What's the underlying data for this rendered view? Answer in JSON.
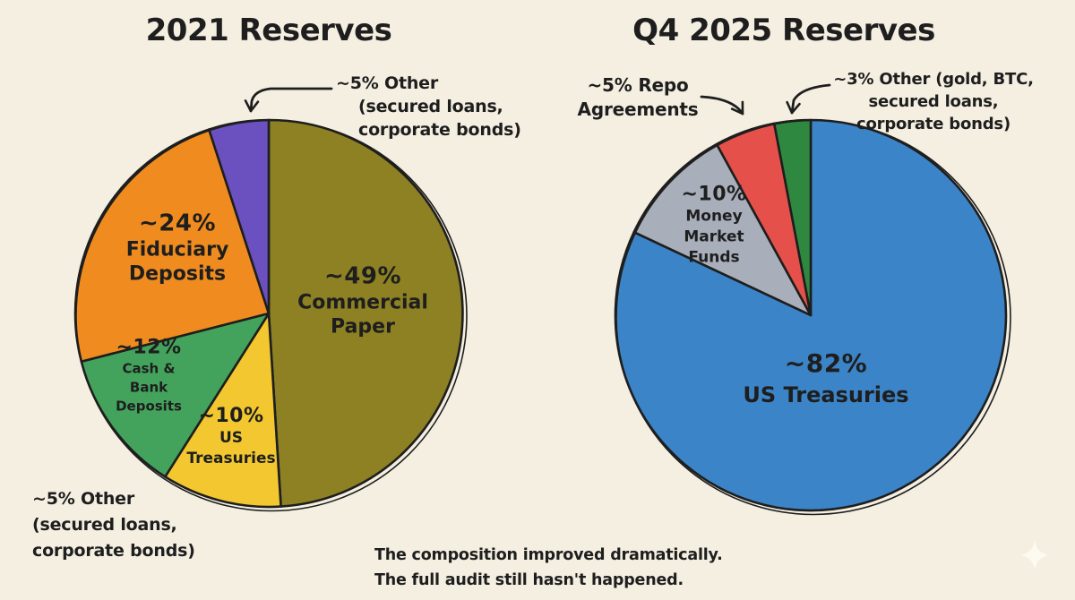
{
  "page": {
    "background": "#f4efe1",
    "ink": "#1e1e1e"
  },
  "chart_data": [
    {
      "type": "pie",
      "title": "2021 Reserves",
      "legend_position": "labels-inside",
      "start_angle": "12-o-clock-clockwise",
      "slices": [
        {
          "label": "Commercial Paper",
          "pct": 49,
          "pct_display": "~49%",
          "color": "#8d8124",
          "label_lines": [
            "~49%",
            "Commercial",
            "Paper"
          ]
        },
        {
          "label": "US Treasuries",
          "pct": 10,
          "pct_display": "~10%",
          "color": "#f2c72f",
          "label_lines": [
            "~10%",
            "US",
            "Treasuries"
          ]
        },
        {
          "label": "Cash & Bank Deposits",
          "pct": 12,
          "pct_display": "~12%",
          "color": "#43a35c",
          "label_lines": [
            "~12%",
            "Cash &",
            "Bank",
            "Deposits"
          ]
        },
        {
          "label": "Fiduciary Deposits",
          "pct": 24,
          "pct_display": "~24%",
          "color": "#f08c1f",
          "label_lines": [
            "~24%",
            "Fiduciary",
            "Deposits"
          ]
        },
        {
          "label": "Other (secured loans, corporate bonds)",
          "pct": 5,
          "pct_display": "~5%",
          "color": "#6b50c0",
          "label_lines": []
        }
      ],
      "annotations": {
        "top_other": {
          "lines": [
            "~5% Other",
            "(secured loans,",
            "corporate bonds)"
          ]
        },
        "bottom_other": {
          "lines": [
            "~5% Other",
            "(secured loans,",
            "corporate bonds)"
          ]
        }
      }
    },
    {
      "type": "pie",
      "title": "Q4 2025 Reserves",
      "legend_position": "labels-inside",
      "start_angle": "12-o-clock-clockwise",
      "slices": [
        {
          "label": "US Treasuries",
          "pct": 82,
          "pct_display": "~82%",
          "color": "#3b84c7",
          "label_lines": [
            "~82%",
            "US Treasuries"
          ]
        },
        {
          "label": "Money Market Funds",
          "pct": 10,
          "pct_display": "~10%",
          "color": "#a8aeba",
          "label_lines": [
            "~10%",
            "Money",
            "Market",
            "Funds"
          ]
        },
        {
          "label": "Repo Agreements",
          "pct": 5,
          "pct_display": "~5%",
          "color": "#e6504b",
          "label_lines": []
        },
        {
          "label": "Other (gold, BTC, secured loans, corporate bonds)",
          "pct": 3,
          "pct_display": "~3%",
          "color": "#2f8840",
          "label_lines": []
        }
      ],
      "annotations": {
        "repo": {
          "lines": [
            "~5% Repo",
            "Agreements"
          ]
        },
        "other": {
          "lines": [
            "~3% Other (gold, BTC,",
            "secured loans,",
            "corporate bonds)"
          ]
        }
      }
    }
  ],
  "caption": {
    "lines": [
      "The composition improved dramatically.",
      "The full audit still hasn't happened."
    ]
  },
  "sparkle": {
    "name": "four-point-star",
    "color": "#fdfaf0"
  }
}
